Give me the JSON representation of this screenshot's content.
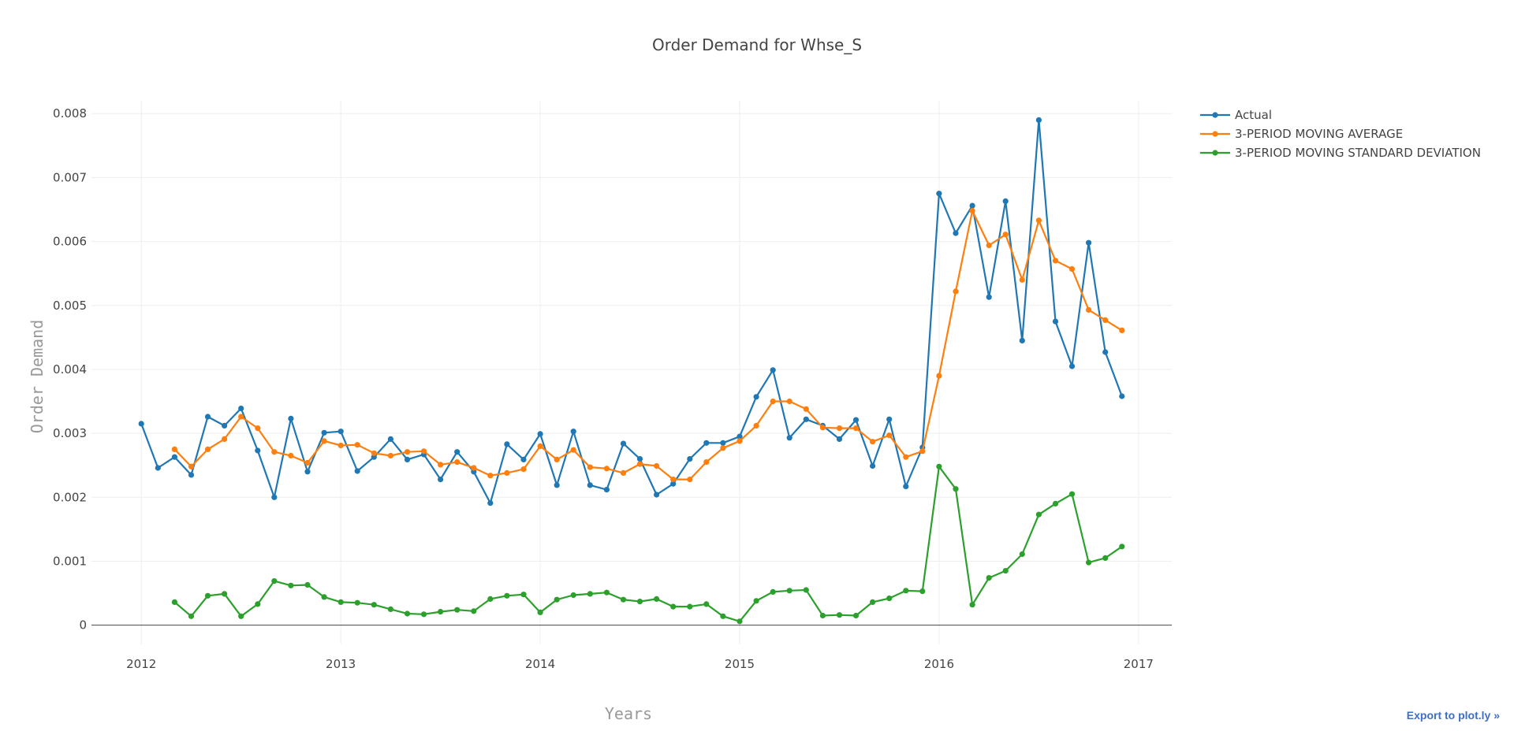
{
  "chart_data": {
    "type": "line",
    "title": "Order Demand for Whse_S",
    "xlabel": "Years",
    "ylabel": "Order Demand",
    "x_range": [
      "2011-10",
      "2017-03"
    ],
    "ylim": [
      -0.0003,
      0.0082
    ],
    "x_ticks": [
      "2012",
      "2013",
      "2014",
      "2015",
      "2016",
      "2017"
    ],
    "y_ticks": [
      "0",
      "0.001",
      "0.002",
      "0.003",
      "0.004",
      "0.005",
      "0.006",
      "0.007",
      "0.008"
    ],
    "grid": true,
    "legend_position": "top-right",
    "x": [
      "2012-01",
      "2012-02",
      "2012-03",
      "2012-04",
      "2012-05",
      "2012-06",
      "2012-07",
      "2012-08",
      "2012-09",
      "2012-10",
      "2012-11",
      "2012-12",
      "2013-01",
      "2013-02",
      "2013-03",
      "2013-04",
      "2013-05",
      "2013-06",
      "2013-07",
      "2013-08",
      "2013-09",
      "2013-10",
      "2013-11",
      "2013-12",
      "2014-01",
      "2014-02",
      "2014-03",
      "2014-04",
      "2014-05",
      "2014-06",
      "2014-07",
      "2014-08",
      "2014-09",
      "2014-10",
      "2014-11",
      "2014-12",
      "2015-01",
      "2015-02",
      "2015-03",
      "2015-04",
      "2015-05",
      "2015-06",
      "2015-07",
      "2015-08",
      "2015-09",
      "2015-10",
      "2015-11",
      "2015-12",
      "2016-01",
      "2016-02",
      "2016-03",
      "2016-04",
      "2016-05",
      "2016-06",
      "2016-07",
      "2016-08",
      "2016-09",
      "2016-10",
      "2016-11",
      "2016-12"
    ],
    "series": [
      {
        "name": "Actual",
        "color": "#1f77b4",
        "values": [
          0.00315,
          0.00246,
          0.00263,
          0.00235,
          0.00326,
          0.00312,
          0.00339,
          0.00273,
          0.002,
          0.00323,
          0.0024,
          0.00301,
          0.00303,
          0.00241,
          0.00263,
          0.00291,
          0.00259,
          0.00267,
          0.00228,
          0.00271,
          0.0024,
          0.00191,
          0.00283,
          0.00259,
          0.00299,
          0.00219,
          0.00303,
          0.00219,
          0.00212,
          0.00284,
          0.0026,
          0.00204,
          0.00221,
          0.0026,
          0.00285,
          0.00285,
          0.00295,
          0.00357,
          0.00399,
          0.00293,
          0.00322,
          0.00312,
          0.00291,
          0.00321,
          0.00249,
          0.00322,
          0.00217,
          0.00278,
          0.00675,
          0.00613,
          0.00656,
          0.00513,
          0.00663,
          0.00445,
          0.0079,
          0.00475,
          0.00405,
          0.00598,
          0.00427,
          0.00358
        ]
      },
      {
        "name": "3-PERIOD MOVING AVERAGE",
        "color": "#ff7f0e",
        "values": [
          null,
          null,
          0.00275,
          0.00248,
          0.00275,
          0.00291,
          0.00326,
          0.00308,
          0.00271,
          0.00265,
          0.00254,
          0.00288,
          0.00281,
          0.00282,
          0.00269,
          0.00265,
          0.00271,
          0.00272,
          0.00251,
          0.00255,
          0.00246,
          0.00234,
          0.00238,
          0.00244,
          0.0028,
          0.00259,
          0.00274,
          0.00247,
          0.00245,
          0.00238,
          0.00252,
          0.00249,
          0.00228,
          0.00228,
          0.00255,
          0.00277,
          0.00288,
          0.00312,
          0.0035,
          0.0035,
          0.00338,
          0.00309,
          0.00308,
          0.00308,
          0.00287,
          0.00297,
          0.00263,
          0.00272,
          0.0039,
          0.00522,
          0.00648,
          0.00594,
          0.00611,
          0.0054,
          0.00633,
          0.0057,
          0.00557,
          0.00493,
          0.00477,
          0.00461
        ]
      },
      {
        "name": "3-PERIOD MOVING STANDARD DEVIATION",
        "color": "#2ca02c",
        "values": [
          null,
          null,
          0.00036,
          0.00014,
          0.00046,
          0.00049,
          0.00014,
          0.00033,
          0.00069,
          0.00062,
          0.00063,
          0.00044,
          0.00036,
          0.00035,
          0.00032,
          0.00025,
          0.00018,
          0.00017,
          0.00021,
          0.00024,
          0.00022,
          0.00041,
          0.00046,
          0.00048,
          0.0002,
          0.0004,
          0.00047,
          0.00049,
          0.00051,
          0.0004,
          0.00037,
          0.00041,
          0.00029,
          0.00029,
          0.00033,
          0.00014,
          6e-05,
          0.00038,
          0.00052,
          0.00054,
          0.00055,
          0.00015,
          0.00016,
          0.00015,
          0.00036,
          0.00042,
          0.00054,
          0.00053,
          0.00248,
          0.00213,
          0.00032,
          0.00074,
          0.00085,
          0.00111,
          0.00173,
          0.0019,
          0.00205,
          0.00098,
          0.00105,
          0.00123
        ]
      }
    ]
  },
  "export_link": "Export to plot.ly »"
}
